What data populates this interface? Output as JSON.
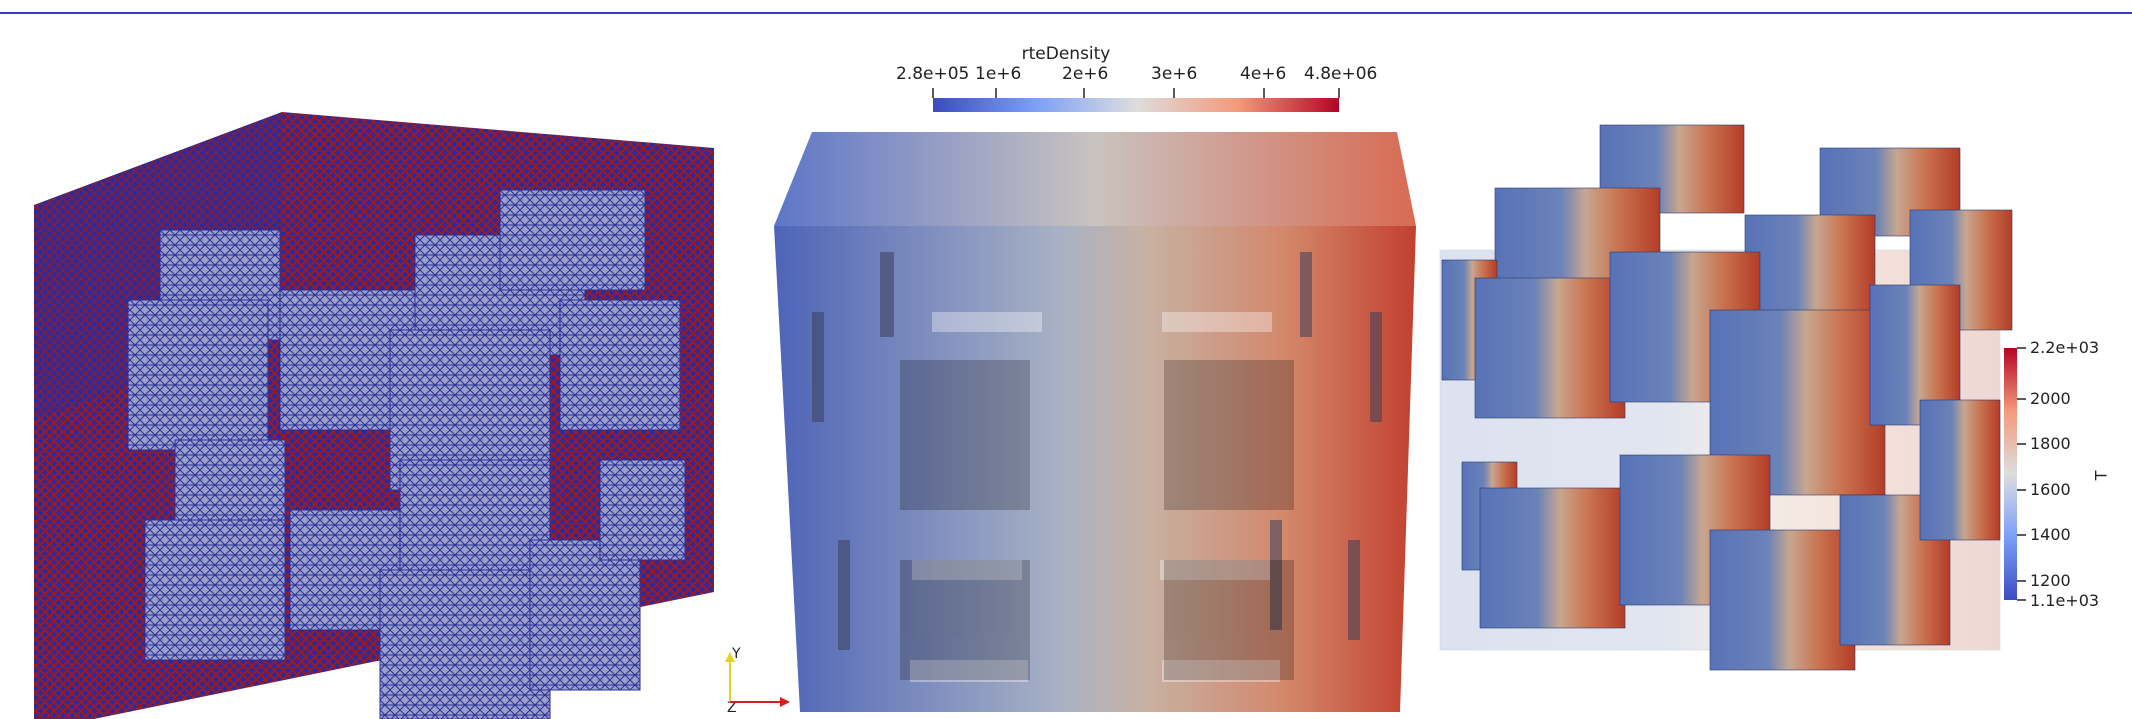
{
  "top_colorbar": {
    "title": "rteDensity",
    "ticks": [
      "2.8e+05",
      "1e+6",
      "2e+6",
      "3e+6",
      "4e+6",
      "4.8e+06"
    ]
  },
  "right_colorbar": {
    "title": "T",
    "ticks": [
      "2.2e+03",
      "2000",
      "1800",
      "1600",
      "1400",
      "1200",
      "1.1e+03"
    ]
  },
  "axes": {
    "y": "Y",
    "z": "Z",
    "x": "X"
  },
  "colors": {
    "low": "#3b4cc0",
    "mid": "#dddddd",
    "high": "#b40426",
    "mesh_dark": "#2a2a9a",
    "mesh_red": "#a01818"
  }
}
